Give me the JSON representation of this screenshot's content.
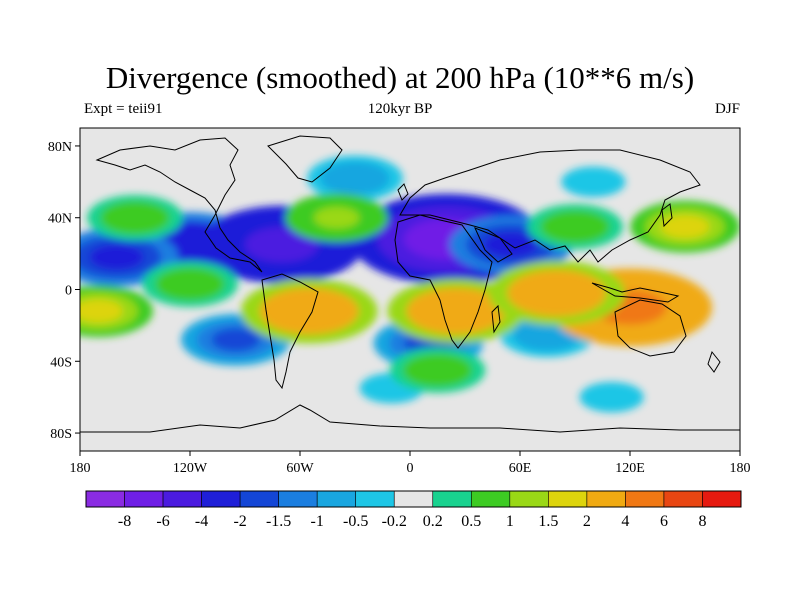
{
  "title": "Divergence (smoothed) at 200 hPa (10**6 m/s)",
  "subtitle_left": "Expt = teii91",
  "subtitle_center": "120kyr BP",
  "subtitle_right": "DJF",
  "lat_ticks": [
    "80N",
    "40N",
    "0",
    "40S",
    "80S"
  ],
  "lon_ticks": [
    "180",
    "120W",
    "60W",
    "0",
    "60E",
    "120E",
    "180"
  ],
  "colorbar": {
    "labels": [
      "-8",
      "-6",
      "-4",
      "-2",
      "-1.5",
      "-1",
      "-0.5",
      "-0.2",
      "0.2",
      "0.5",
      "1",
      "1.5",
      "2",
      "4",
      "6",
      "8"
    ],
    "colors": [
      "#8a2be2",
      "#6f1fe6",
      "#4b1be0",
      "#1f1fd8",
      "#1446d6",
      "#1b7ee0",
      "#19a6e0",
      "#1ec6e6",
      "#e6e6e6",
      "#19d28f",
      "#3dcb23",
      "#9ad816",
      "#ddd40c",
      "#f0aa12",
      "#f07814",
      "#e84612",
      "#e61a10"
    ]
  },
  "fields": {
    "negative": [
      {
        "lon": -120,
        "lat": 25,
        "v": -4
      },
      {
        "lon": -70,
        "lat": 25,
        "v": -6
      },
      {
        "lon": 20,
        "lat": 28,
        "v": -8
      },
      {
        "lon": 55,
        "lat": 25,
        "v": -3
      },
      {
        "lon": -160,
        "lat": 18,
        "v": -3
      },
      {
        "lon": -95,
        "lat": -28,
        "v": -2
      },
      {
        "lon": 10,
        "lat": -30,
        "v": -2
      },
      {
        "lon": 75,
        "lat": -25,
        "v": -1
      },
      {
        "lon": -30,
        "lat": 62,
        "v": -1
      },
      {
        "lon": 100,
        "lat": 60,
        "v": -0.5
      },
      {
        "lon": -10,
        "lat": -55,
        "v": -0.5
      },
      {
        "lon": 110,
        "lat": -60,
        "v": -0.5
      }
    ],
    "positive": [
      {
        "lon": -55,
        "lat": -12,
        "v": 4
      },
      {
        "lon": 25,
        "lat": -12,
        "v": 4
      },
      {
        "lon": 120,
        "lat": -10,
        "v": 6
      },
      {
        "lon": 80,
        "lat": -2,
        "v": 4
      },
      {
        "lon": -170,
        "lat": -12,
        "v": 2
      },
      {
        "lon": 150,
        "lat": 35,
        "v": 2
      },
      {
        "lon": -40,
        "lat": 40,
        "v": 1.5
      },
      {
        "lon": -150,
        "lat": 40,
        "v": 1
      },
      {
        "lon": 15,
        "lat": -45,
        "v": 1
      },
      {
        "lon": -120,
        "lat": 3,
        "v": 1
      },
      {
        "lon": 90,
        "lat": 35,
        "v": 1
      }
    ]
  }
}
